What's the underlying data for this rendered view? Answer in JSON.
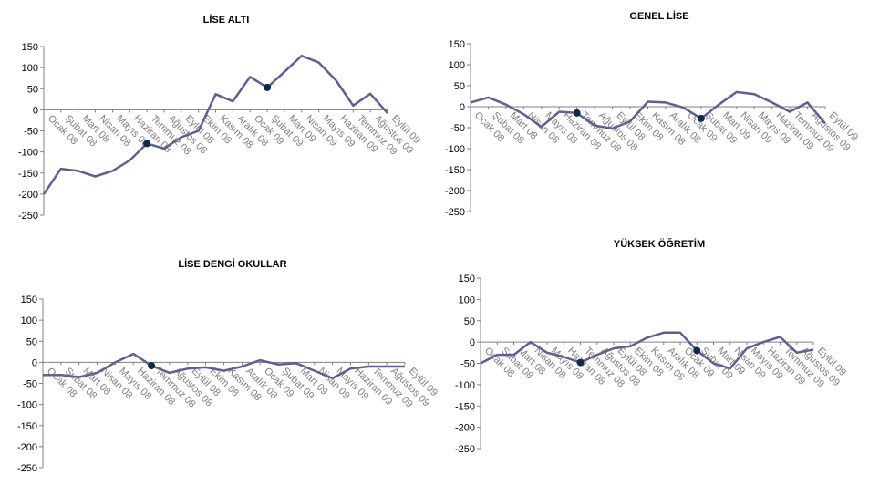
{
  "chart_data": [
    {
      "type": "line",
      "title": "LİSE ALTI",
      "categories": [
        "Ocak 08",
        "Şubat 08",
        "Mart 08",
        "Nisan 08",
        "Mayıs 08",
        "Haziran 08",
        "Temmuz 08",
        "Ağustos 08",
        "Eylül 08",
        "Ekim 08",
        "Kasım 08",
        "Aralık 08",
        "Ocak 09",
        "Şubat 09",
        "Mart 09",
        "Nisan 09",
        "Mayıs 09",
        "Haziran 09",
        "Temmuz 09",
        "Ağustos 09",
        "Eylül 09"
      ],
      "series": [
        {
          "values": [
            -200,
            -140,
            -145,
            -158,
            -145,
            -120,
            -80,
            -92,
            -65,
            -50,
            37,
            20,
            78,
            53,
            90,
            128,
            112,
            70,
            10,
            38,
            -8
          ]
        }
      ],
      "markers": [
        6,
        13
      ],
      "yticks": [
        150,
        100,
        50,
        0,
        -50,
        -100,
        -150,
        -200,
        -250
      ],
      "ylim": [
        -250,
        150
      ],
      "line_color": "#5f5f91",
      "marker_color": "#0f2a4a"
    },
    {
      "type": "line",
      "title": "GENEL LİSE",
      "categories": [
        "Ocak 08",
        "Şubat 08",
        "Mart 08",
        "Nisan 08",
        "Mayıs 08",
        "Haziran 08",
        "Temmuz 08",
        "Ağustos 08",
        "Eylül 08",
        "Ekim 08",
        "Kasım 08",
        "Aralık 08",
        "Ocak 09",
        "Şubat 09",
        "Mart 09",
        "Nisan 09",
        "Mayıs 09",
        "Haziran 09",
        "Temmuz 09",
        "Ağustos 09",
        "Eylül 09"
      ],
      "series": [
        {
          "values": [
            10,
            22,
            5,
            -18,
            -48,
            -12,
            -15,
            -45,
            -52,
            -35,
            12,
            10,
            -2,
            -28,
            5,
            35,
            30,
            10,
            -12,
            10,
            -40
          ]
        }
      ],
      "markers": [
        6,
        13
      ],
      "yticks": [
        150,
        100,
        50,
        0,
        -50,
        -100,
        -150,
        -200,
        -250
      ],
      "ylim": [
        -250,
        150
      ],
      "line_color": "#5f5f91",
      "marker_color": "#0f2a4a"
    },
    {
      "type": "line",
      "title": "LİSE DENGİ OKULLAR",
      "categories": [
        "Ocak 08",
        "Şubat 08",
        "Mart 08",
        "Nisan 08",
        "Mayıs 08",
        "Haziran 08",
        "Temmuz 08",
        "Ağustos 08",
        "Eylül 08",
        "Ekim 08",
        "Kasım 08",
        "Aralık 08",
        "Ocak 09",
        "Şubat 09",
        "Mart 09",
        "Nisan 09",
        "Mayıs 09",
        "Haziran 09",
        "Temmuz 09",
        "Ağustos 09",
        "Eylül 09"
      ],
      "series": [
        {
          "values": [
            -30,
            -30,
            -35,
            -25,
            0,
            20,
            -8,
            -25,
            -15,
            -12,
            -20,
            -10,
            5,
            -5,
            -2,
            -20,
            -38,
            -15,
            -10,
            -10,
            -10
          ]
        }
      ],
      "markers": [
        6
      ],
      "yticks": [
        150,
        100,
        50,
        0,
        -50,
        -100,
        -150,
        -200,
        -250
      ],
      "ylim": [
        -250,
        150
      ],
      "line_color": "#5f5f91",
      "marker_color": "#0f2a4a"
    },
    {
      "type": "line",
      "title": "YÜKSEK ÖĞRETİM",
      "categories": [
        "Ocak 08",
        "Şubat 08",
        "Mart 08",
        "Nisan 08",
        "Mayıs 08",
        "Haziran 08",
        "Temmuz 08",
        "Ağustos 08",
        "Eylül 08",
        "Ekim 08",
        "Kasım 08",
        "Aralık 08",
        "Ocak 09",
        "Şubat 09",
        "Mart 09",
        "Nisan 09",
        "Mayıs 09",
        "Haziran 09",
        "Temmuz 09",
        "Ağustos 09",
        "Eylül 09"
      ],
      "series": [
        {
          "values": [
            -50,
            -30,
            -30,
            0,
            -25,
            -35,
            -48,
            -30,
            -15,
            -10,
            10,
            22,
            22,
            -20,
            -50,
            -62,
            -15,
            0,
            12,
            -25,
            -18
          ]
        }
      ],
      "markers": [
        6,
        13
      ],
      "yticks": [
        150,
        100,
        50,
        0,
        -50,
        -100,
        -150,
        -200,
        -250
      ],
      "ylim": [
        -250,
        150
      ],
      "line_color": "#5f5f91",
      "marker_color": "#0f2a4a"
    }
  ]
}
